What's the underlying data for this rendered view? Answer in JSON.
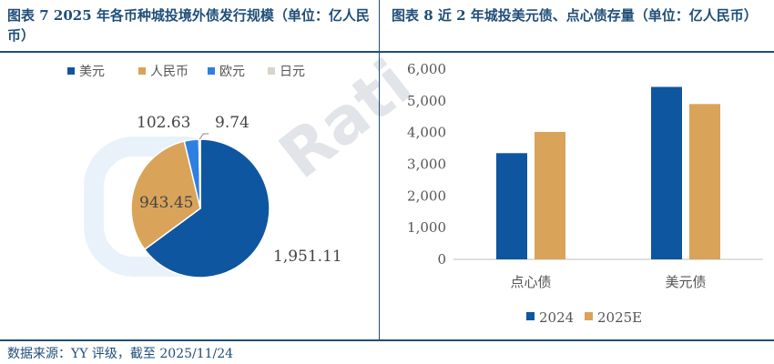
{
  "watermark": "Rati",
  "left_panel": {
    "title": "图表 7 2025 年各币种城投境外债发行规模（单位：亿人民币）"
  },
  "right_panel": {
    "title": "图表 8 近 2 年城投美元债、点心债存量（单位：亿人民币）"
  },
  "source": "数据来源：YY 评级，截至 2025/11/24",
  "chart_data": [
    {
      "type": "pie",
      "title": "图表 7 2025 年各币种城投境外债发行规模（单位：亿人民币）",
      "legend": [
        "美元",
        "人民币",
        "欧元",
        "日元"
      ],
      "legend_placement": "top",
      "slices": [
        {
          "name": "美元",
          "value": 1951.11,
          "label": "1,951.11",
          "color": "#0e56a0"
        },
        {
          "name": "人民币",
          "value": 943.45,
          "label": "943.45",
          "color": "#d9a35a"
        },
        {
          "name": "欧元",
          "value": 102.63,
          "label": "102.63",
          "color": "#2f7fe0"
        },
        {
          "name": "日元",
          "value": 9.74,
          "label": "9.74",
          "color": "#d8d4cc"
        }
      ]
    },
    {
      "type": "bar",
      "title": "图表 8 近 2 年城投美元债、点心债存量（单位：亿人民币）",
      "categories": [
        "点心债",
        "美元债"
      ],
      "series": [
        {
          "name": "2024",
          "values": [
            3350,
            5440
          ],
          "color": "#0e56a0"
        },
        {
          "name": "2025E",
          "values": [
            4020,
            4900
          ],
          "color": "#d9a35a"
        }
      ],
      "ylim": [
        0,
        6000
      ],
      "yticks": [
        0,
        1000,
        2000,
        3000,
        4000,
        5000,
        6000
      ],
      "ytick_labels": [
        "0",
        "1,000",
        "2,000",
        "3,000",
        "4,000",
        "5,000",
        "6,000"
      ],
      "grid": false,
      "legend_placement": "bottom"
    }
  ]
}
